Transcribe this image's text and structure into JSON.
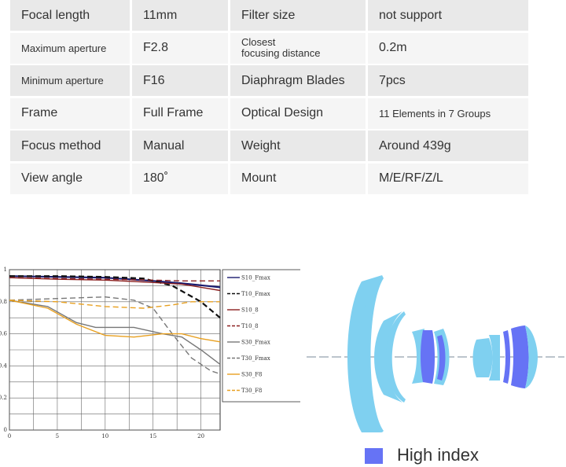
{
  "specs": {
    "rows": [
      {
        "label1": "Focal length",
        "value1": "11mm",
        "label2": "Filter size",
        "value2": "not support"
      },
      {
        "label1": "Maximum aperture",
        "value1": "F2.8",
        "label2a": "Closest",
        "label2b": "focusing distance",
        "value2": "0.2m"
      },
      {
        "label1": "Minimum aperture",
        "value1": "F16",
        "label2": "Diaphragm Blades",
        "value2": "7pcs"
      },
      {
        "label1": "Frame",
        "value1": "Full Frame",
        "label2": "Optical Design",
        "value2": "11 Elements in 7 Groups"
      },
      {
        "label1": "Focus method",
        "value1": "Manual",
        "label2": "Weight",
        "value2": "Around 439g"
      },
      {
        "label1": "View angle",
        "value1": "180˚",
        "label2": "Mount",
        "value2": "M/E/RF/Z/L"
      }
    ]
  },
  "chart_data": {
    "type": "line",
    "xlim": [
      0,
      22
    ],
    "ylim": [
      0,
      1
    ],
    "x_ticks": [
      "0",
      "5",
      "10",
      "15",
      "20"
    ],
    "y_ticks": [
      "0",
      "0.2",
      "0.4",
      "0.6",
      "0.8",
      "1"
    ],
    "series": [
      {
        "name": "S10_Fmax",
        "color": "#1a1a6e",
        "dash": "solid",
        "points": [
          [
            0,
            0.96
          ],
          [
            5,
            0.955
          ],
          [
            10,
            0.95
          ],
          [
            15,
            0.93
          ],
          [
            18,
            0.915
          ],
          [
            22,
            0.89
          ]
        ]
      },
      {
        "name": "T10_Fmax",
        "color": "#111111",
        "dash": "dashed",
        "points": [
          [
            0,
            0.96
          ],
          [
            5,
            0.96
          ],
          [
            10,
            0.955
          ],
          [
            14,
            0.945
          ],
          [
            17,
            0.9
          ],
          [
            20,
            0.8
          ],
          [
            22,
            0.7
          ]
        ]
      },
      {
        "name": "S10_8",
        "color": "#8b2020",
        "dash": "solid",
        "points": [
          [
            0,
            0.95
          ],
          [
            5,
            0.94
          ],
          [
            10,
            0.935
          ],
          [
            15,
            0.92
          ],
          [
            18,
            0.91
          ],
          [
            22,
            0.87
          ]
        ]
      },
      {
        "name": "T10_8",
        "color": "#8b2020",
        "dash": "dashed",
        "points": [
          [
            0,
            0.95
          ],
          [
            5,
            0.945
          ],
          [
            10,
            0.94
          ],
          [
            15,
            0.935
          ],
          [
            18,
            0.93
          ],
          [
            22,
            0.93
          ]
        ]
      },
      {
        "name": "S30_Fmax",
        "color": "#777777",
        "dash": "solid",
        "points": [
          [
            0,
            0.81
          ],
          [
            4,
            0.77
          ],
          [
            7,
            0.67
          ],
          [
            9,
            0.64
          ],
          [
            13,
            0.64
          ],
          [
            16,
            0.6
          ],
          [
            18,
            0.58
          ],
          [
            20,
            0.5
          ],
          [
            22,
            0.41
          ]
        ]
      },
      {
        "name": "T30_Fmax",
        "color": "#777777",
        "dash": "dashed",
        "points": [
          [
            0,
            0.81
          ],
          [
            5,
            0.82
          ],
          [
            10,
            0.83
          ],
          [
            13,
            0.81
          ],
          [
            15,
            0.76
          ],
          [
            17,
            0.6
          ],
          [
            19,
            0.45
          ],
          [
            21,
            0.37
          ],
          [
            22,
            0.35
          ]
        ]
      },
      {
        "name": "S30_F8",
        "color": "#e8a020",
        "dash": "solid",
        "points": [
          [
            0,
            0.81
          ],
          [
            4,
            0.76
          ],
          [
            7,
            0.66
          ],
          [
            10,
            0.59
          ],
          [
            13,
            0.58
          ],
          [
            16,
            0.6
          ],
          [
            18,
            0.6
          ],
          [
            20,
            0.57
          ],
          [
            22,
            0.55
          ]
        ]
      },
      {
        "name": "T30_F8",
        "color": "#e8a020",
        "dash": "dashed",
        "points": [
          [
            0,
            0.81
          ],
          [
            5,
            0.8
          ],
          [
            10,
            0.77
          ],
          [
            14,
            0.76
          ],
          [
            17,
            0.78
          ],
          [
            19,
            0.8
          ],
          [
            22,
            0.8
          ]
        ]
      }
    ]
  },
  "lens": {
    "legend_label": "High index",
    "light_color": "#7fd0f0",
    "high_index_color": "#6673f5"
  }
}
